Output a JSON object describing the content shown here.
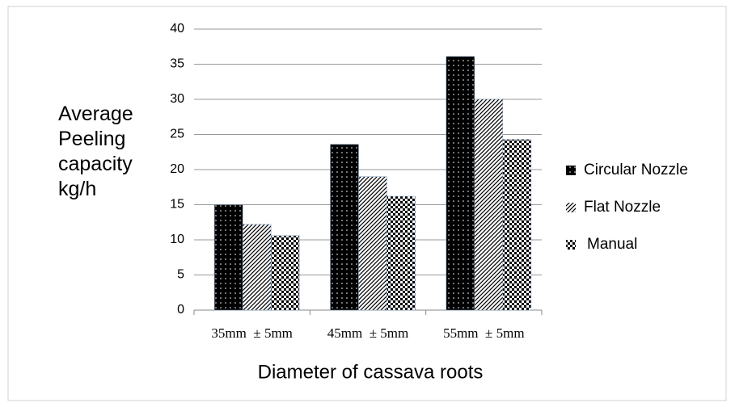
{
  "chart_data": {
    "type": "bar",
    "y_label": "Average Peeling capacity kg/h",
    "x_label": "Diameter of cassava roots",
    "categories": [
      "35mm  ± 5mm",
      "45mm  ± 5mm",
      "55mm  ± 5mm"
    ],
    "series": [
      {
        "name": "Circular Nozzle",
        "color": "#000000",
        "values": [
          15,
          23.6,
          36.1
        ]
      },
      {
        "name": "Flat Nozzle",
        "color": "#000000",
        "values": [
          12.2,
          19,
          30
        ]
      },
      {
        "name": "Manual",
        "color": "#000000",
        "values": [
          10.6,
          16.2,
          24.3
        ]
      }
    ],
    "ylim": [
      0,
      40
    ],
    "yticks": [
      0,
      5,
      10,
      15,
      20,
      25,
      30,
      35,
      40
    ],
    "grid": true,
    "legend": "right"
  }
}
